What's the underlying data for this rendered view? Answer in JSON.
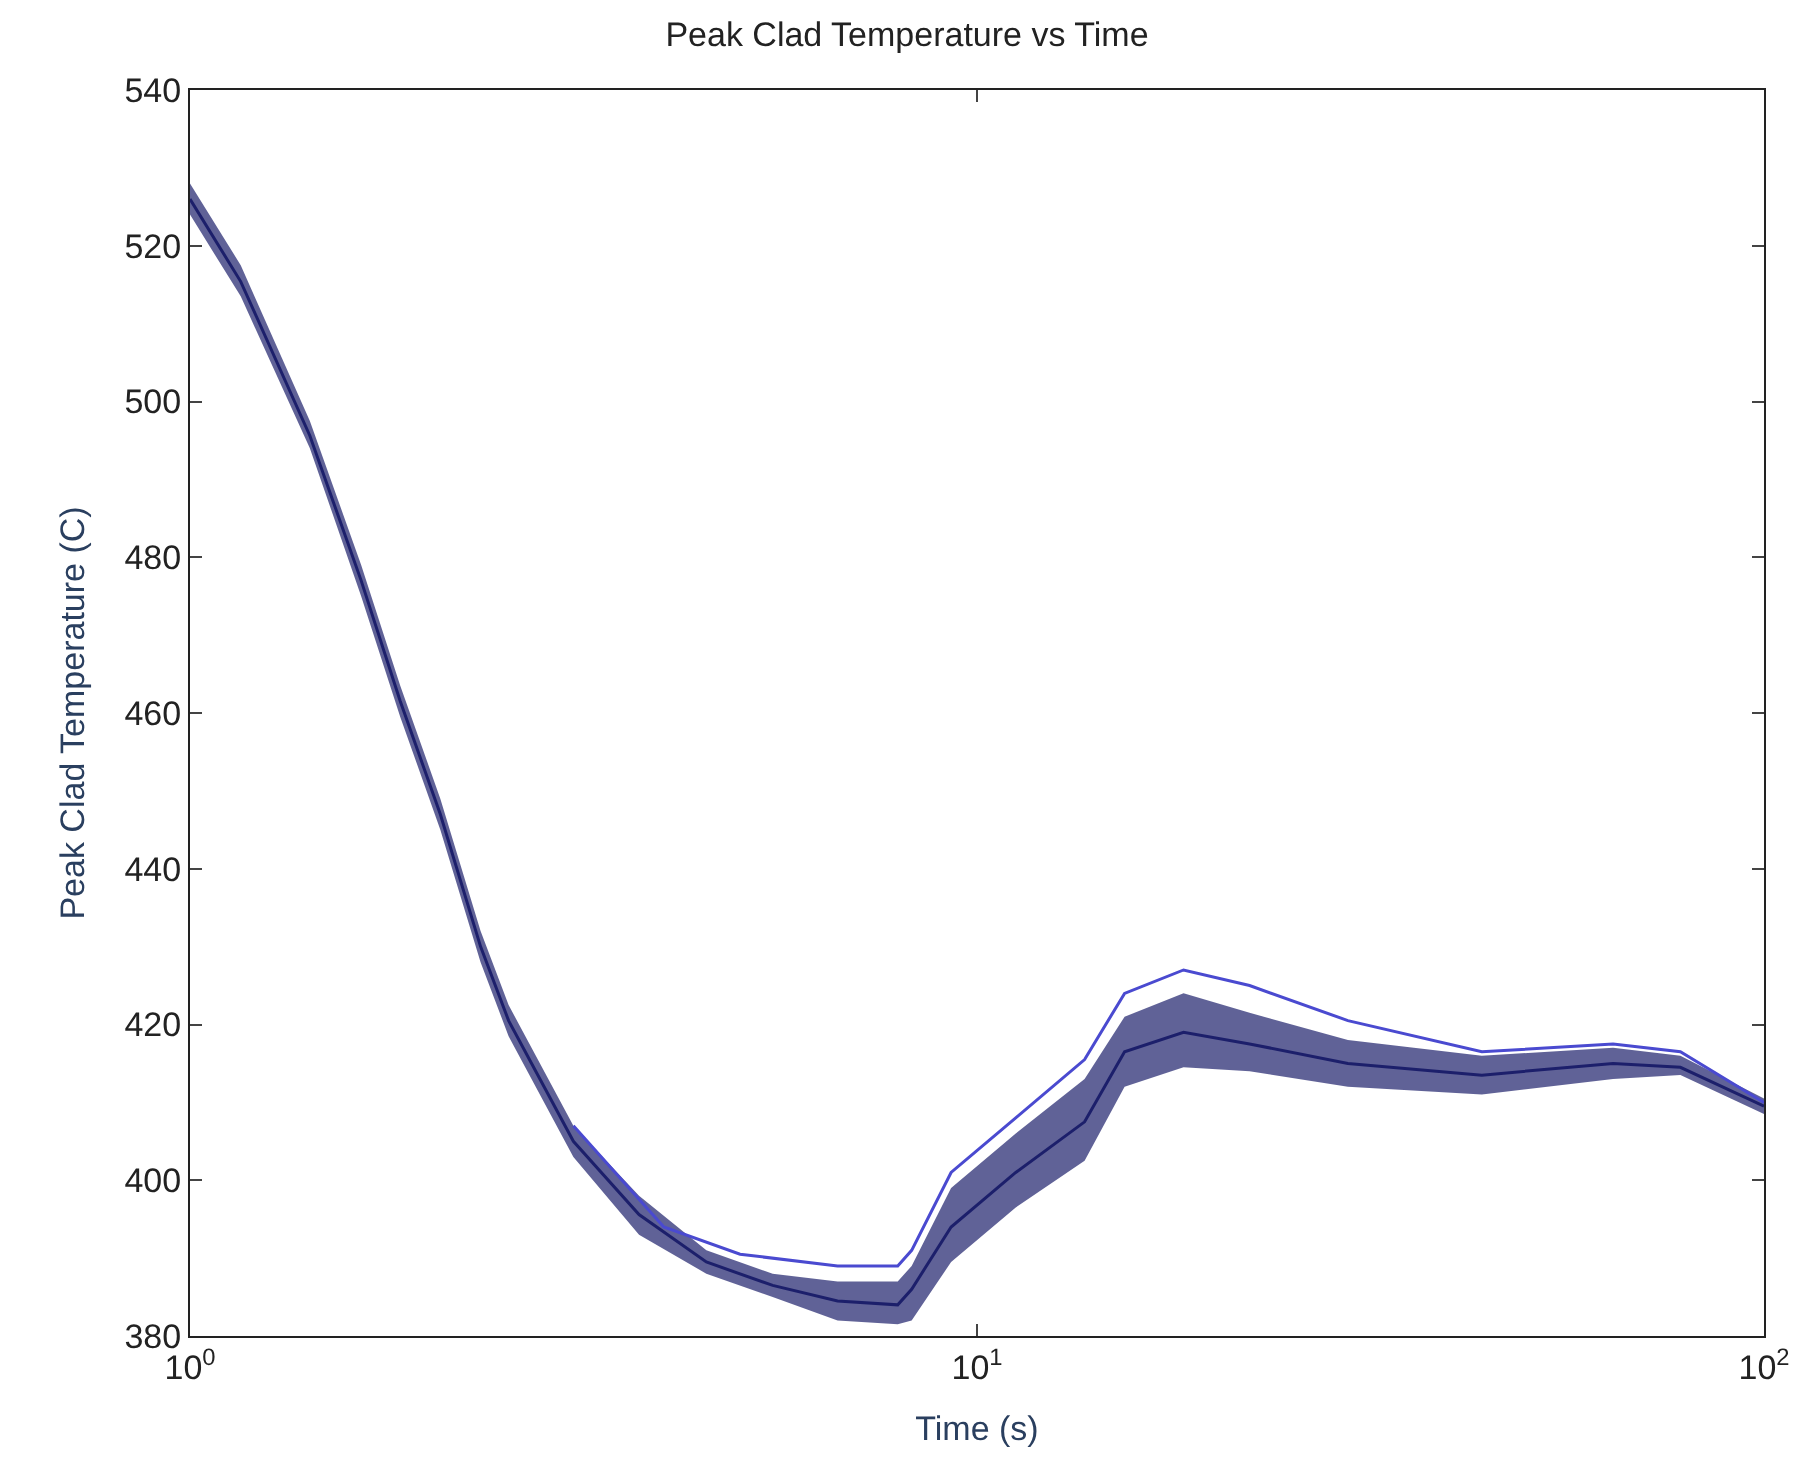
{
  "chart_data": {
    "type": "line",
    "title": "Peak Clad Temperature vs Time",
    "xlabel": "Time (s)",
    "ylabel": "Peak Clad Temperature (C)",
    "log": "x",
    "marker": "none",
    "line_style": "solid",
    "xlim": [
      1,
      100
    ],
    "xticks": [
      {
        "value": 1,
        "label": "10$^{0}$"
      },
      {
        "value": 10,
        "label": "10$^{1}$"
      },
      {
        "value": 100,
        "label": "10$^{2}$"
      }
    ],
    "ylim": [
      380,
      540
    ],
    "yticks": [
      380,
      400,
      420,
      440,
      460,
      480,
      500,
      520,
      540
    ],
    "series": [
      {
        "color": "#1c1f6b",
        "x": [
          1,
          1.16,
          1.42,
          1.65,
          1.85,
          2.08,
          2.34,
          2.54,
          3.07,
          3.72,
          4.53,
          5.5,
          6.65,
          7.93,
          8.26,
          9.27,
          11.2,
          13.7,
          15.4,
          18.3,
          22.2,
          29.6,
          43.8,
          64.3,
          78.3,
          100
        ],
        "values": [
          526,
          515.4,
          495.6,
          477,
          461.5,
          447,
          430,
          420.5,
          405,
          395.6,
          389.5,
          386.5,
          384.5,
          384,
          386,
          394,
          401,
          407.5,
          416.5,
          419,
          417.5,
          415,
          413.5,
          415,
          414.5,
          409.5
        ],
        "lower": [
          524,
          513.5,
          494,
          475,
          459.5,
          445,
          428,
          418.5,
          403,
          393,
          388,
          385,
          382,
          381.5,
          382,
          389.5,
          396.5,
          402.5,
          412,
          414.5,
          414,
          412,
          411,
          413,
          413.5,
          408.5
        ],
        "upper": [
          528,
          517.5,
          497.5,
          479,
          463.5,
          449,
          432,
          422.5,
          407,
          398,
          391,
          388,
          387,
          387,
          389,
          399,
          406,
          413,
          421,
          424,
          421.5,
          418,
          416,
          417,
          416,
          410.5
        ]
      },
      {
        "color": "#4a4ad0",
        "x": [
          3.07,
          4.0,
          5.0,
          6.65,
          7.93,
          8.26,
          9.27,
          11.2,
          13.7,
          15.4,
          18.3,
          22.2,
          29.6,
          43.8,
          64.3,
          78.3,
          100
        ],
        "values": [
          407,
          394,
          390.5,
          389,
          389,
          391,
          401,
          408,
          415.5,
          424,
          427,
          425,
          420.5,
          416.5,
          417.5,
          416.5,
          410
        ]
      }
    ]
  }
}
